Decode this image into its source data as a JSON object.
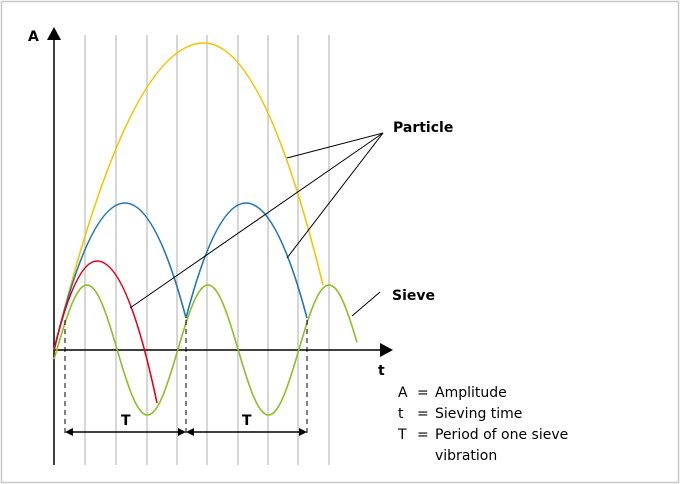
{
  "axes": {
    "y_label": "A",
    "x_label": "t"
  },
  "labels": {
    "particle": "Particle",
    "sieve": "Sieve",
    "period_1": "T",
    "period_2": "T"
  },
  "legend": [
    {
      "symbol": "A",
      "equals": "=",
      "text": [
        "Amplitude"
      ]
    },
    {
      "symbol": "t",
      "equals": "=",
      "text": [
        "Sieving time"
      ]
    },
    {
      "symbol": "T",
      "equals": "=",
      "text": [
        "Period of one sieve",
        "vibration"
      ]
    }
  ]
}
